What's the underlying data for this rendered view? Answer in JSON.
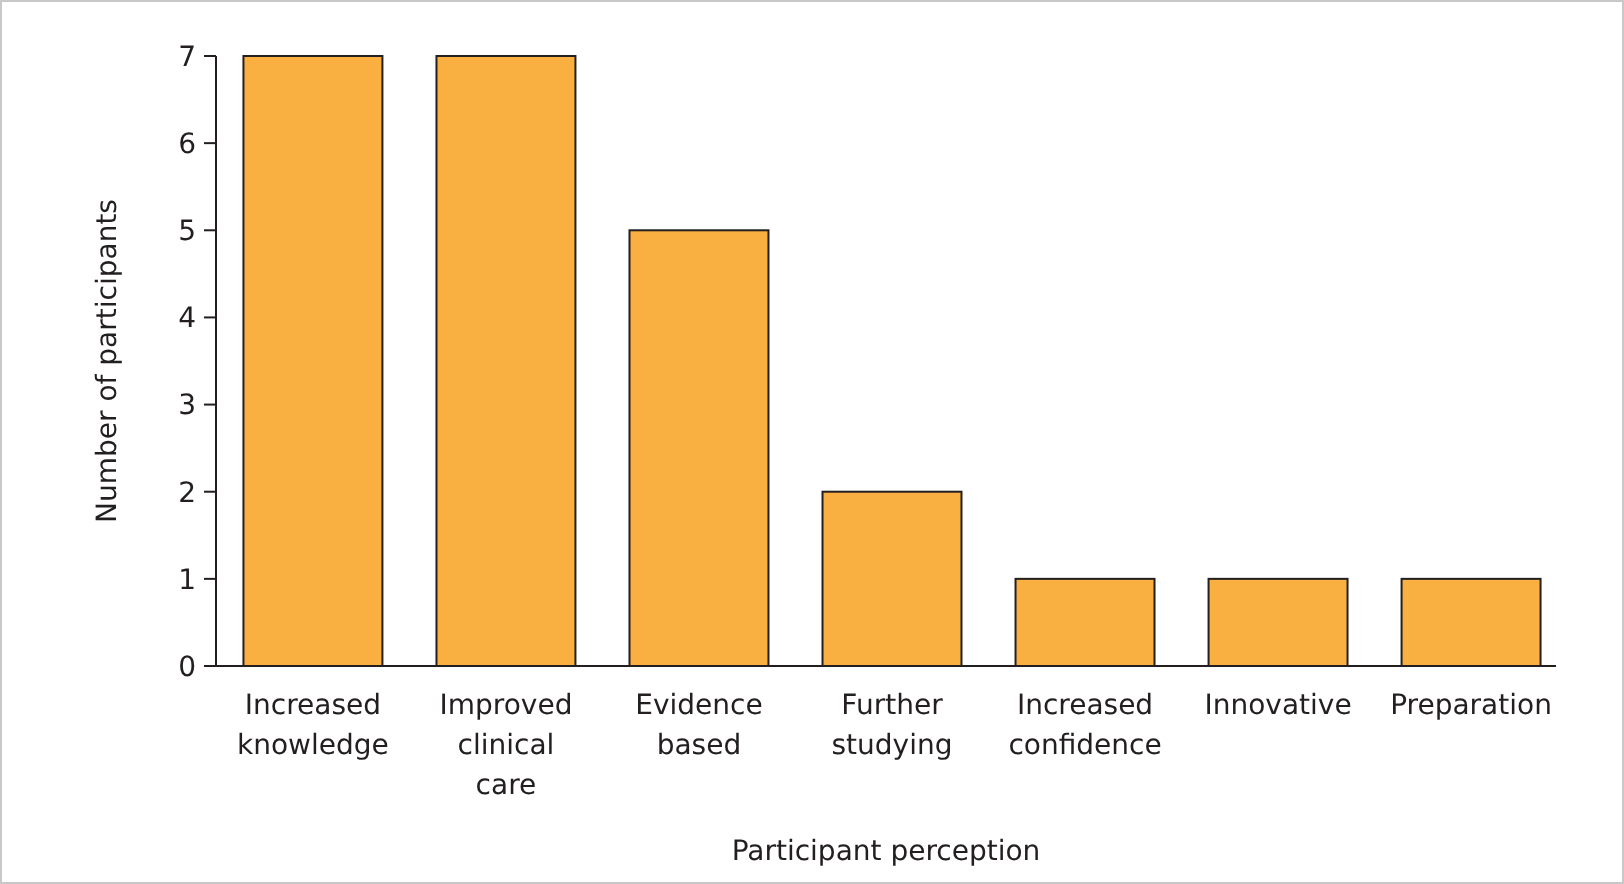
{
  "chart_data": {
    "type": "bar",
    "xlabel": "Participant perception",
    "ylabel": "Number of participants",
    "categories": [
      "Increased knowledge",
      "Improved clinical care",
      "Evidence based",
      "Further studying",
      "Increased confidence",
      "Innovative",
      "Preparation"
    ],
    "values": [
      7,
      7,
      5,
      2,
      1,
      1,
      1
    ],
    "color": "#f9b041",
    "ylim": [
      0,
      7
    ],
    "yticks": [
      0,
      1,
      2,
      3,
      4,
      5,
      6,
      7
    ],
    "grid": false
  }
}
